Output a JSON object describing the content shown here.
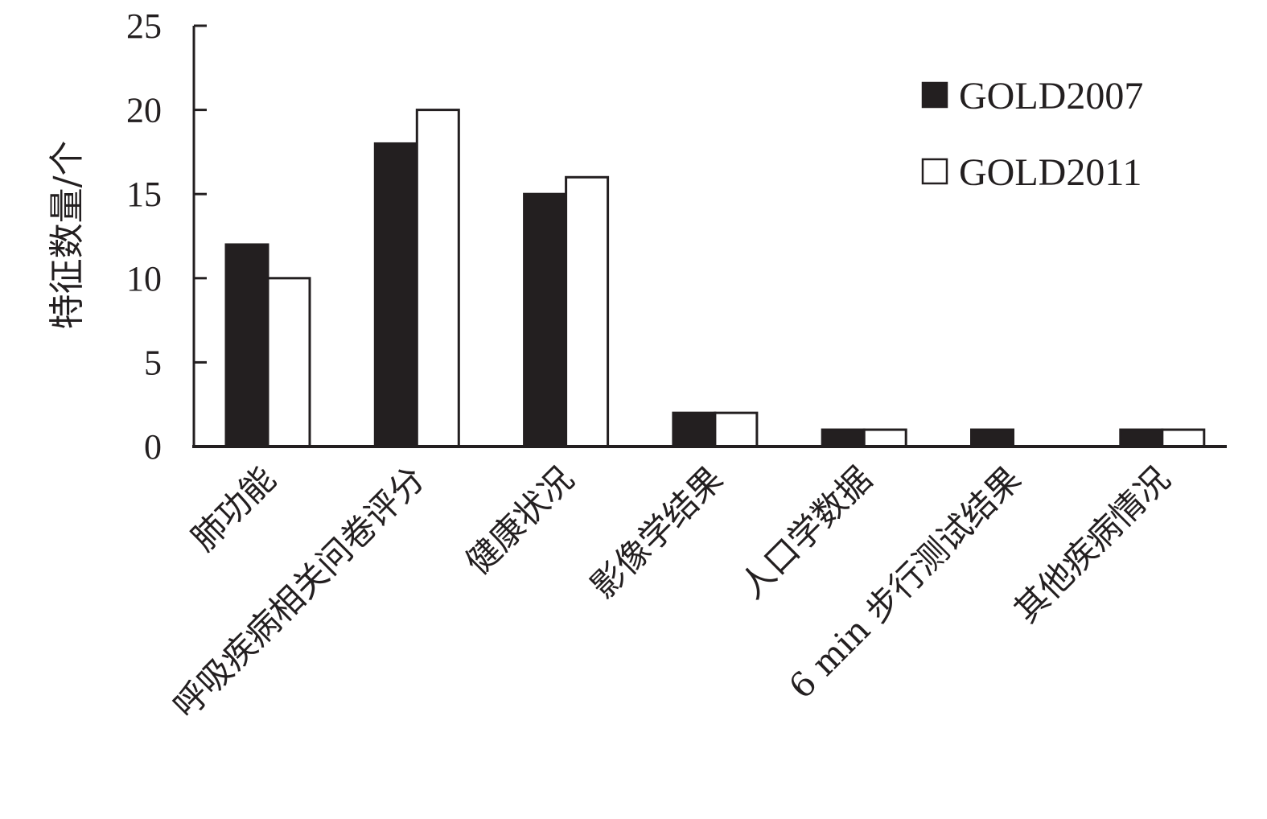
{
  "chart_data": {
    "type": "bar",
    "title": "",
    "xlabel": "",
    "ylabel": "特征数量/个",
    "ylim": [
      0,
      25
    ],
    "yticks": [
      0,
      5,
      10,
      15,
      20,
      25
    ],
    "grid": false,
    "legend_position": "top-right",
    "categories": [
      "肺功能",
      "呼吸疾病相关问卷评分",
      "健康状况",
      "影像学结果",
      "人口学数据",
      "6 min 步行测试结果",
      "其他疾病情况"
    ],
    "series": [
      {
        "name": "GOLD2007",
        "color": "#231f20",
        "values": [
          12,
          18,
          15,
          2,
          1,
          1,
          1
        ]
      },
      {
        "name": "GOLD2011",
        "color": "#ffffff",
        "values": [
          10,
          20,
          16,
          2,
          1,
          0,
          1
        ]
      }
    ]
  }
}
